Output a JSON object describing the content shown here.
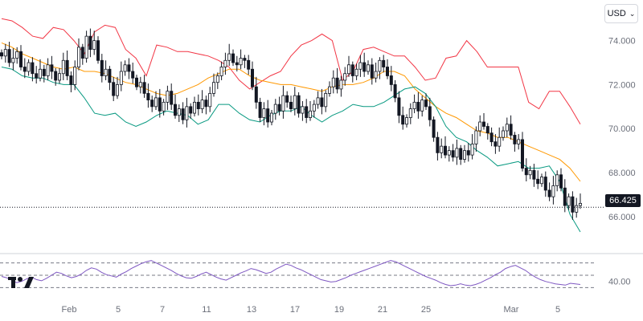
{
  "currency_selector": {
    "label": "USD",
    "chevron": "chevron-down-icon"
  },
  "last_price_label": "66.425",
  "logo": {
    "icon": "tradingview-logo-icon"
  },
  "chart_data": [
    {
      "type": "candlestick",
      "title": "",
      "indicators": [
        "Bollinger Bands"
      ],
      "y_ticks": [
        {
          "value": 74.0,
          "label": "74.000"
        },
        {
          "value": 72.0,
          "label": "72.000"
        },
        {
          "value": 70.0,
          "label": "70.000"
        },
        {
          "value": 68.0,
          "label": "68.000"
        },
        {
          "value": 66.0,
          "label": "66.000"
        }
      ],
      "ylim": [
        64.9,
        75.3
      ],
      "last_price": 66.425,
      "x_ticks": [
        "Feb",
        "5",
        "7",
        "11",
        "13",
        "17",
        "19",
        "21",
        "25",
        "Mar",
        "5"
      ],
      "candles_close": [
        73.3,
        73.6,
        73.0,
        73.2,
        73.5,
        72.8,
        72.6,
        73.0,
        72.5,
        72.3,
        72.7,
        72.4,
        72.9,
        72.6,
        72.2,
        72.5,
        73.1,
        72.4,
        72.0,
        72.8,
        73.7,
        73.2,
        74.2,
        73.6,
        74.0,
        73.1,
        72.4,
        72.7,
        72.1,
        71.5,
        72.0,
        72.6,
        72.9,
        72.6,
        72.3,
        71.9,
        72.1,
        71.6,
        71.3,
        71.0,
        71.4,
        70.8,
        71.2,
        71.7,
        71.1,
        70.6,
        70.9,
        70.4,
        71.0,
        70.7,
        71.2,
        70.9,
        71.3,
        71.0,
        71.6,
        72.1,
        72.4,
        72.8,
        73.1,
        73.4,
        73.0,
        72.9,
        73.2,
        73.1,
        72.7,
        71.9,
        71.2,
        70.5,
        70.9,
        70.3,
        70.7,
        71.1,
        70.8,
        71.5,
        71.2,
        70.9,
        71.5,
        70.7,
        71.0,
        70.5,
        70.8,
        71.1,
        71.4,
        71.0,
        71.6,
        71.9,
        72.3,
        71.8,
        72.2,
        72.5,
        72.9,
        72.4,
        72.7,
        73.0,
        72.6,
        72.9,
        72.3,
        72.6,
        73.1,
        72.8,
        72.4,
        72.0,
        71.4,
        70.6,
        70.2,
        70.5,
        70.9,
        71.2,
        70.8,
        71.3,
        71.0,
        70.4,
        69.6,
        68.9,
        69.2,
        68.8,
        69.0,
        68.7,
        69.1,
        68.6,
        69.0,
        68.8,
        69.3,
        69.9,
        70.3,
        70.1,
        69.8,
        69.4,
        69.2,
        69.6,
        69.9,
        70.2,
        69.7,
        69.3,
        69.5,
        68.2,
        67.9,
        68.1,
        67.7,
        67.5,
        67.8,
        67.2,
        66.9,
        67.4,
        67.9,
        67.3,
        66.5,
        66.9,
        66.2,
        66.5,
        66.6
      ],
      "bollinger": {
        "upper": [
          75.0,
          74.9,
          74.6,
          74.2,
          74.1,
          74.6,
          74.5,
          74.0,
          73.4,
          74.4,
          74.7,
          74.6,
          73.6,
          73.2,
          72.4,
          73.8,
          73.7,
          73.5,
          73.5,
          73.4,
          73.3,
          73.1,
          72.8,
          72.2,
          71.8,
          72.1,
          72.4,
          72.6,
          73.3,
          73.8,
          74.0,
          74.3,
          74.0,
          72.2,
          72.6,
          73.6,
          73.7,
          73.5,
          73.3,
          73.3,
          72.8,
          72.2,
          72.3,
          73.2,
          73.3,
          74.0,
          73.5,
          72.8,
          72.8,
          72.8,
          72.8,
          71.2,
          70.9,
          71.7,
          71.7,
          71.0,
          70.2
        ],
        "middle": [
          73.9,
          73.7,
          73.4,
          73.2,
          73.0,
          72.8,
          72.7,
          72.8,
          72.6,
          72.6,
          72.5,
          72.3,
          72.1,
          72.0,
          71.8,
          71.6,
          71.5,
          71.6,
          71.8,
          72.0,
          72.3,
          72.5,
          72.7,
          72.7,
          72.4,
          72.2,
          72.1,
          72.0,
          72.0,
          71.9,
          71.8,
          71.7,
          71.9,
          72.0,
          72.0,
          72.1,
          72.3,
          72.6,
          72.6,
          72.4,
          71.8,
          71.4,
          71.0,
          70.7,
          70.5,
          70.2,
          69.9,
          69.8,
          69.6,
          69.6,
          69.4,
          69.2,
          69.0,
          68.8,
          68.6,
          68.2,
          67.6
        ],
        "lower": [
          72.8,
          72.7,
          72.4,
          72.3,
          72.3,
          72.1,
          72.0,
          72.0,
          71.4,
          70.7,
          70.6,
          70.7,
          70.3,
          70.1,
          70.3,
          70.6,
          70.8,
          70.7,
          70.6,
          70.2,
          70.4,
          71.1,
          71.1,
          70.7,
          70.4,
          70.3,
          70.6,
          70.8,
          70.8,
          71.0,
          70.6,
          70.3,
          70.6,
          70.8,
          71.1,
          71.0,
          71.0,
          71.2,
          71.5,
          71.8,
          71.9,
          71.6,
          71.0,
          70.1,
          69.6,
          69.4,
          69.0,
          68.7,
          68.3,
          68.4,
          68.5,
          68.2,
          68.2,
          68.3,
          67.6,
          66.1,
          65.3
        ]
      }
    },
    {
      "type": "line",
      "title": "",
      "indicator": "RSI",
      "y_ticks": [
        {
          "value": 40,
          "label": "40.00"
        }
      ],
      "levels": [
        70,
        50,
        30
      ],
      "ylim": [
        20,
        80
      ],
      "values": [
        48,
        46,
        42,
        38,
        40,
        44,
        47,
        43,
        41,
        45,
        50,
        55,
        53,
        49,
        46,
        48,
        52,
        58,
        62,
        60,
        55,
        51,
        49,
        47,
        52,
        56,
        61,
        65,
        69,
        72,
        74,
        70,
        66,
        62,
        58,
        53,
        49,
        46,
        45,
        48,
        52,
        55,
        51,
        47,
        44,
        42,
        46,
        50,
        54,
        57,
        61,
        59,
        56,
        53,
        55,
        60,
        64,
        68,
        66,
        62,
        59,
        55,
        51,
        47,
        43,
        41,
        39,
        40,
        43,
        46,
        50,
        53,
        56,
        59,
        62,
        65,
        68,
        71,
        74,
        72,
        68,
        64,
        60,
        56,
        52,
        48,
        45,
        42,
        38,
        35,
        33,
        34,
        36,
        34,
        33,
        35,
        38,
        42,
        46,
        51,
        55,
        61,
        64,
        66,
        62,
        58,
        52,
        47,
        43,
        40,
        38,
        36,
        35,
        34,
        37,
        36,
        35
      ],
      "x_ticks": [
        "Feb",
        "5",
        "7",
        "11",
        "13",
        "17",
        "19",
        "21",
        "25",
        "Mar",
        "5"
      ]
    }
  ]
}
